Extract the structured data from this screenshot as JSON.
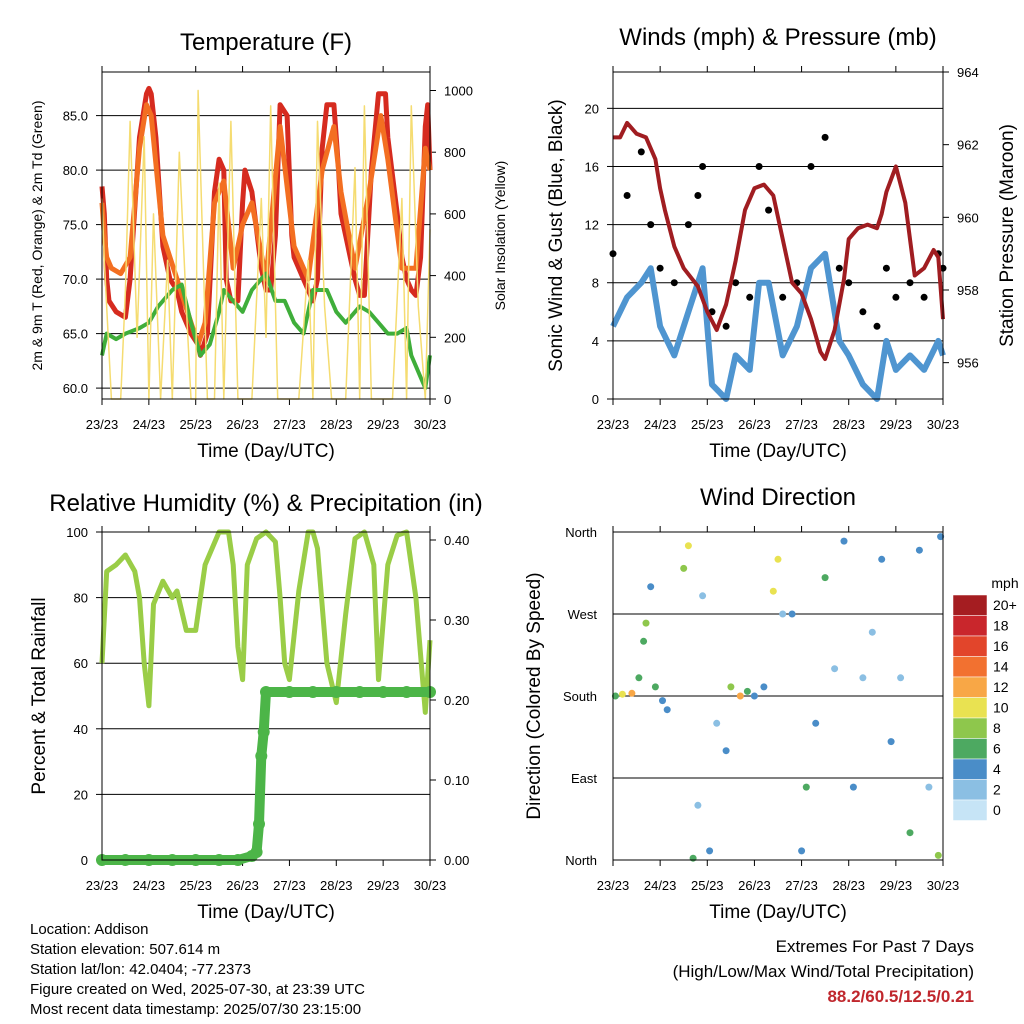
{
  "chart_data": [
    {
      "type": "line",
      "title": "Temperature (F)",
      "xlabel": "Time (Day/UTC)",
      "ylabel": "2m & 9m T (Red, Orange) & 2m Td (Green)",
      "y2label": "Solar Insolation (Yellow)",
      "x_ticks": [
        "23/23",
        "24/23",
        "25/23",
        "26/23",
        "27/23",
        "28/23",
        "29/23",
        "30/23"
      ],
      "ylim": [
        59,
        89
      ],
      "y_ticks": [
        "60.0",
        "65.0",
        "70.0",
        "75.0",
        "80.0",
        "85.0"
      ],
      "y2lim": [
        0,
        1060
      ],
      "y2_ticks": [
        "0",
        "200",
        "400",
        "600",
        "800",
        "1000"
      ],
      "grid": true,
      "series": [
        {
          "color": "#d62b1f",
          "x": [
            0,
            0.05,
            0.1,
            0.15,
            0.3,
            0.5,
            0.6,
            0.8,
            0.95,
            1.0,
            1.05,
            1.15,
            1.3,
            1.45,
            1.6,
            1.7,
            1.9,
            2.05,
            2.1,
            2.25,
            2.4,
            2.5,
            2.6,
            2.65,
            2.75,
            2.9,
            3.0,
            3.05,
            3.2,
            3.4,
            3.5,
            3.6,
            3.7,
            3.8,
            3.95,
            4.05,
            4.1,
            4.3,
            4.4,
            4.5,
            4.6,
            4.7,
            4.8,
            4.95,
            5.05,
            5.1,
            5.3,
            5.4,
            5.5,
            5.6,
            5.75,
            5.9,
            6.05,
            6.1,
            6.3,
            6.4,
            6.5,
            6.6,
            6.7,
            6.8,
            6.9,
            6.95,
            7.0
          ],
          "values": [
            78.5,
            76,
            70,
            68,
            67,
            66.5,
            70,
            83,
            87,
            87.5,
            87,
            83,
            73,
            70,
            69,
            67,
            65,
            64,
            63,
            65,
            78,
            81,
            80,
            70,
            68,
            68,
            77,
            80,
            78,
            71,
            69,
            69,
            74,
            86,
            85,
            74,
            72,
            70,
            69,
            68,
            70,
            82,
            86,
            86,
            80,
            76,
            72,
            70,
            68.5,
            68.5,
            80,
            87,
            87,
            83,
            76,
            72,
            70,
            69,
            68.5,
            72,
            84,
            86,
            80
          ]
        },
        {
          "color": "#f36f21",
          "x": [
            0,
            0.05,
            0.1,
            0.2,
            0.4,
            0.6,
            0.8,
            0.95,
            1.05,
            1.3,
            1.6,
            1.9,
            2.05,
            2.2,
            2.4,
            2.6,
            2.8,
            3.0,
            3.2,
            3.5,
            3.8,
            4.1,
            4.4,
            4.7,
            4.95,
            5.1,
            5.4,
            5.7,
            5.95,
            6.1,
            6.4,
            6.7,
            6.9,
            7.0
          ],
          "values": [
            77,
            74,
            72,
            71,
            70.5,
            72,
            82,
            86,
            85,
            74,
            70,
            66,
            64,
            66,
            77,
            79,
            71,
            75,
            77,
            70,
            84,
            73,
            70,
            80,
            84,
            78,
            71,
            78,
            85,
            81,
            71,
            71,
            82,
            80
          ]
        },
        {
          "color": "#3fae3a",
          "x": [
            0,
            0.1,
            0.3,
            0.5,
            0.8,
            1.0,
            1.2,
            1.5,
            1.7,
            1.9,
            2.1,
            2.3,
            2.5,
            2.6,
            2.8,
            3.0,
            3.2,
            3.5,
            3.7,
            3.9,
            4.1,
            4.3,
            4.5,
            4.8,
            5.0,
            5.2,
            5.5,
            5.7,
            5.9,
            6.1,
            6.3,
            6.5,
            6.6,
            6.8,
            6.9,
            7.0
          ],
          "values": [
            63,
            65,
            64.5,
            65,
            65.5,
            66,
            67.5,
            69,
            69.5,
            66,
            63,
            64,
            67,
            69,
            68,
            67,
            69,
            70.5,
            68,
            68,
            66,
            65,
            69,
            69,
            67,
            66,
            67.5,
            67,
            66,
            65,
            65,
            65.5,
            63,
            61,
            60,
            63
          ]
        },
        {
          "color": "#f5dc71",
          "role": "solar",
          "x": [
            0,
            0.05,
            0.2,
            0.4,
            0.5,
            0.6,
            0.75,
            0.9,
            1.0,
            1.1,
            1.25,
            1.4,
            1.5,
            1.65,
            1.8,
            1.9,
            2.0,
            2.05,
            2.25,
            2.4,
            2.5,
            2.6,
            2.75,
            2.9,
            3.0,
            3.2,
            3.4,
            3.5,
            3.6,
            3.75,
            3.9,
            4.0,
            4.2,
            4.4,
            4.5,
            4.6,
            4.75,
            4.9,
            5.0,
            5.2,
            5.4,
            5.5,
            5.6,
            5.75,
            5.9,
            6.0,
            6.2,
            6.4,
            6.5,
            6.6,
            6.75,
            6.9,
            7.0
          ],
          "values": [
            650,
            450,
            0,
            0,
            350,
            900,
            200,
            850,
            0,
            600,
            0,
            450,
            0,
            800,
            300,
            0,
            0,
            1000,
            0,
            0,
            700,
            0,
            900,
            0,
            0,
            0,
            650,
            200,
            950,
            0,
            0,
            0,
            0,
            450,
            0,
            900,
            300,
            0,
            0,
            0,
            750,
            0,
            950,
            0,
            0,
            0,
            0,
            650,
            0,
            950,
            300,
            0,
            550
          ]
        }
      ]
    },
    {
      "type": "scatter",
      "title": "Winds (mph) & Pressure (mb)",
      "xlabel": "Time (Day/UTC)",
      "ylabel": "Sonic Wind & Gust (Blue, Black)",
      "y2label": "Station Pressure (Maroon)",
      "x_ticks": [
        "23/23",
        "24/23",
        "25/23",
        "26/23",
        "27/23",
        "28/23",
        "29/23",
        "30/23"
      ],
      "ylim": [
        0,
        22.5
      ],
      "y_ticks": [
        "0",
        "4",
        "8",
        "12",
        "16",
        "20"
      ],
      "y2lim": [
        955,
        964
      ],
      "y2_ticks": [
        "956",
        "958",
        "960",
        "962",
        "964"
      ],
      "grid": true,
      "series": [
        {
          "color": "#000000",
          "x": [
            0,
            0.3,
            0.6,
            0.8,
            1.0,
            1.3,
            1.6,
            1.8,
            1.9,
            2.1,
            2.4,
            2.6,
            2.9,
            3.1,
            3.3,
            3.6,
            3.9,
            4.2,
            4.5,
            4.8,
            5.0,
            5.3,
            5.6,
            5.8,
            6.0,
            6.3,
            6.6,
            6.9,
            7.0
          ],
          "values": [
            10,
            14,
            17,
            12,
            9,
            8,
            12,
            14,
            16,
            6,
            5,
            8,
            7,
            16,
            13,
            7,
            8,
            16,
            18,
            9,
            8,
            6,
            5,
            9,
            7,
            8,
            7,
            10,
            9
          ]
        },
        {
          "color": "#4f95d0",
          "x": [
            0,
            0.3,
            0.6,
            0.8,
            1.0,
            1.3,
            1.6,
            1.8,
            1.9,
            2.1,
            2.4,
            2.6,
            2.9,
            3.1,
            3.3,
            3.6,
            3.9,
            4.2,
            4.5,
            4.8,
            5.0,
            5.3,
            5.6,
            5.8,
            6.0,
            6.3,
            6.6,
            6.9,
            7.0
          ],
          "values": [
            5,
            7,
            8,
            9,
            5,
            3,
            6,
            8,
            9,
            1,
            0,
            3,
            2,
            8,
            8,
            3,
            5,
            9,
            10,
            4,
            3,
            1,
            0,
            4,
            2,
            3,
            2,
            4,
            3
          ]
        },
        {
          "color": "#a01d21",
          "x": [
            0,
            0.15,
            0.3,
            0.5,
            0.7,
            0.9,
            1.0,
            1.1,
            1.3,
            1.5,
            1.8,
            2.0,
            2.2,
            2.4,
            2.6,
            2.8,
            3.0,
            3.2,
            3.4,
            3.6,
            3.8,
            4.0,
            4.2,
            4.4,
            4.5,
            4.7,
            4.9,
            5.0,
            5.2,
            5.4,
            5.6,
            5.7,
            5.8,
            6.0,
            6.2,
            6.4,
            6.6,
            6.8,
            6.9,
            7.0
          ],
          "values": [
            962.2,
            962.2,
            962.6,
            962.3,
            962.2,
            961.6,
            960.8,
            960.2,
            959.2,
            958.6,
            958.1,
            957.4,
            956.9,
            957.6,
            958.8,
            960.2,
            960.8,
            960.9,
            960.6,
            959.4,
            958.2,
            957.9,
            957.2,
            956.3,
            956.1,
            956.9,
            958.3,
            959.4,
            959.7,
            959.8,
            959.7,
            960.1,
            960.7,
            961.4,
            960.4,
            958.4,
            958.6,
            959.1,
            958.9,
            957.2
          ]
        }
      ]
    },
    {
      "type": "scatter",
      "title": "Relative Humidity (%) & Precipitation (in)",
      "xlabel": "Time (Day/UTC)",
      "ylabel": "Percent & Total Rainfall",
      "x_ticks": [
        "23/23",
        "24/23",
        "25/23",
        "26/23",
        "27/23",
        "28/23",
        "29/23",
        "30/23"
      ],
      "ylim": [
        0,
        100
      ],
      "y_ticks": [
        "0",
        "20",
        "40",
        "60",
        "80",
        "100"
      ],
      "y2lim": [
        0,
        0.41
      ],
      "y2_ticks": [
        "0.00",
        "0.10",
        "0.20",
        "0.30",
        "0.40"
      ],
      "grid": true,
      "series": [
        {
          "color": "#9acd47",
          "x": [
            0,
            0.1,
            0.3,
            0.5,
            0.7,
            0.8,
            0.9,
            1.0,
            1.1,
            1.3,
            1.5,
            1.6,
            1.8,
            2.0,
            2.2,
            2.5,
            2.7,
            2.8,
            2.9,
            3.0,
            3.1,
            3.3,
            3.5,
            3.7,
            3.8,
            3.9,
            4.0,
            4.2,
            4.4,
            4.5,
            4.6,
            4.8,
            5.0,
            5.2,
            5.4,
            5.6,
            5.8,
            5.9,
            6.1,
            6.3,
            6.5,
            6.7,
            6.9,
            7.0
          ],
          "values": [
            60,
            88,
            90,
            93,
            88,
            80,
            60,
            47,
            78,
            85,
            80,
            82,
            70,
            70,
            90,
            100,
            100,
            90,
            65,
            55,
            90,
            98,
            100,
            97,
            80,
            60,
            55,
            82,
            100,
            100,
            95,
            60,
            48,
            75,
            98,
            100,
            90,
            55,
            90,
            99,
            100,
            80,
            45,
            67
          ]
        },
        {
          "color": "#4cb548",
          "x": [
            0,
            0.5,
            1.0,
            1.5,
            2.0,
            2.5,
            2.9,
            3.2,
            3.3,
            3.35,
            3.4,
            3.45,
            3.5,
            4.0,
            4.5,
            5.0,
            5.5,
            6.0,
            6.5,
            7.0
          ],
          "values": [
            0,
            0,
            0,
            0,
            0,
            0,
            0,
            0.005,
            0.01,
            0.045,
            0.13,
            0.16,
            0.21,
            0.21,
            0.21,
            0.21,
            0.21,
            0.21,
            0.21,
            0.21
          ]
        }
      ]
    },
    {
      "type": "scatter",
      "title": "Wind Direction",
      "xlabel": "Time (Day/UTC)",
      "ylabel": "Direction (Colored By Speed)",
      "x_ticks": [
        "23/23",
        "24/23",
        "25/23",
        "26/23",
        "27/23",
        "28/23",
        "29/23",
        "30/23"
      ],
      "y_ticks": [
        "North",
        "East",
        "South",
        "West",
        "North"
      ],
      "ylim": [
        0,
        360
      ],
      "grid": true,
      "colorbar": {
        "title": "mph",
        "labels": [
          "20+",
          "18",
          "16",
          "14",
          "12",
          "10",
          "8",
          "6",
          "4",
          "2",
          "0"
        ],
        "colors": [
          "#a51d21",
          "#c9262c",
          "#e2452b",
          "#f27130",
          "#f8a746",
          "#e9e251",
          "#8ec74c",
          "#4da961",
          "#4a8dc8",
          "#8bbfe3",
          "#c6e4f6"
        ]
      },
      "points_speed_mph": [
        {
          "x": 0.05,
          "dir": 180,
          "mph": 6
        },
        {
          "x": 0.2,
          "dir": 182,
          "mph": 9
        },
        {
          "x": 0.4,
          "dir": 183,
          "mph": 11
        },
        {
          "x": 0.55,
          "dir": 200,
          "mph": 6
        },
        {
          "x": 0.65,
          "dir": 240,
          "mph": 5
        },
        {
          "x": 0.7,
          "dir": 260,
          "mph": 8
        },
        {
          "x": 0.8,
          "dir": 300,
          "mph": 4
        },
        {
          "x": 0.9,
          "dir": 190,
          "mph": 6
        },
        {
          "x": 1.05,
          "dir": 175,
          "mph": 4
        },
        {
          "x": 1.15,
          "dir": 165,
          "mph": 3
        },
        {
          "x": 1.5,
          "dir": 320,
          "mph": 8
        },
        {
          "x": 1.6,
          "dir": 345,
          "mph": 10
        },
        {
          "x": 1.7,
          "dir": 2,
          "mph": 6
        },
        {
          "x": 1.8,
          "dir": 60,
          "mph": 2
        },
        {
          "x": 1.9,
          "dir": 290,
          "mph": 1
        },
        {
          "x": 2.05,
          "dir": 10,
          "mph": 3
        },
        {
          "x": 2.2,
          "dir": 150,
          "mph": 2
        },
        {
          "x": 2.4,
          "dir": 120,
          "mph": 4
        },
        {
          "x": 2.5,
          "dir": 190,
          "mph": 8
        },
        {
          "x": 2.7,
          "dir": 180,
          "mph": 11
        },
        {
          "x": 2.85,
          "dir": 185,
          "mph": 6
        },
        {
          "x": 3.0,
          "dir": 180,
          "mph": 4
        },
        {
          "x": 3.2,
          "dir": 190,
          "mph": 4
        },
        {
          "x": 3.4,
          "dir": 295,
          "mph": 9
        },
        {
          "x": 3.5,
          "dir": 330,
          "mph": 10
        },
        {
          "x": 3.6,
          "dir": 270,
          "mph": 2
        },
        {
          "x": 3.8,
          "dir": 270,
          "mph": 3
        },
        {
          "x": 4.0,
          "dir": 10,
          "mph": 4
        },
        {
          "x": 4.1,
          "dir": 80,
          "mph": 6
        },
        {
          "x": 4.3,
          "dir": 150,
          "mph": 4
        },
        {
          "x": 4.5,
          "dir": 310,
          "mph": 5
        },
        {
          "x": 4.7,
          "dir": 210,
          "mph": 2
        },
        {
          "x": 4.9,
          "dir": 350,
          "mph": 3
        },
        {
          "x": 5.1,
          "dir": 80,
          "mph": 4
        },
        {
          "x": 5.3,
          "dir": 200,
          "mph": 2
        },
        {
          "x": 5.5,
          "dir": 250,
          "mph": 1
        },
        {
          "x": 5.7,
          "dir": 330,
          "mph": 3
        },
        {
          "x": 5.9,
          "dir": 130,
          "mph": 4
        },
        {
          "x": 6.1,
          "dir": 200,
          "mph": 1
        },
        {
          "x": 6.3,
          "dir": 30,
          "mph": 5
        },
        {
          "x": 6.5,
          "dir": 340,
          "mph": 4
        },
        {
          "x": 6.7,
          "dir": 80,
          "mph": 2
        },
        {
          "x": 6.9,
          "dir": 5,
          "mph": 7
        },
        {
          "x": 6.95,
          "dir": 355,
          "mph": 3
        }
      ]
    }
  ],
  "info": {
    "location": "Location: Addison",
    "elevation": "Station elevation: 507.614 m",
    "latlon": "Station lat/lon: 42.0404; -77.2373",
    "created": "Figure created on Wed, 2025-07-30, at 23:39 UTC",
    "timestamp": "Most recent data timestamp: 2025/07/30 23:15:00"
  },
  "extremes": {
    "title": "Extremes For Past 7 Days",
    "subtitle": "(High/Low/Max Wind/Total Precipitation)",
    "values": "88.2/60.5/12.5/0.21"
  }
}
